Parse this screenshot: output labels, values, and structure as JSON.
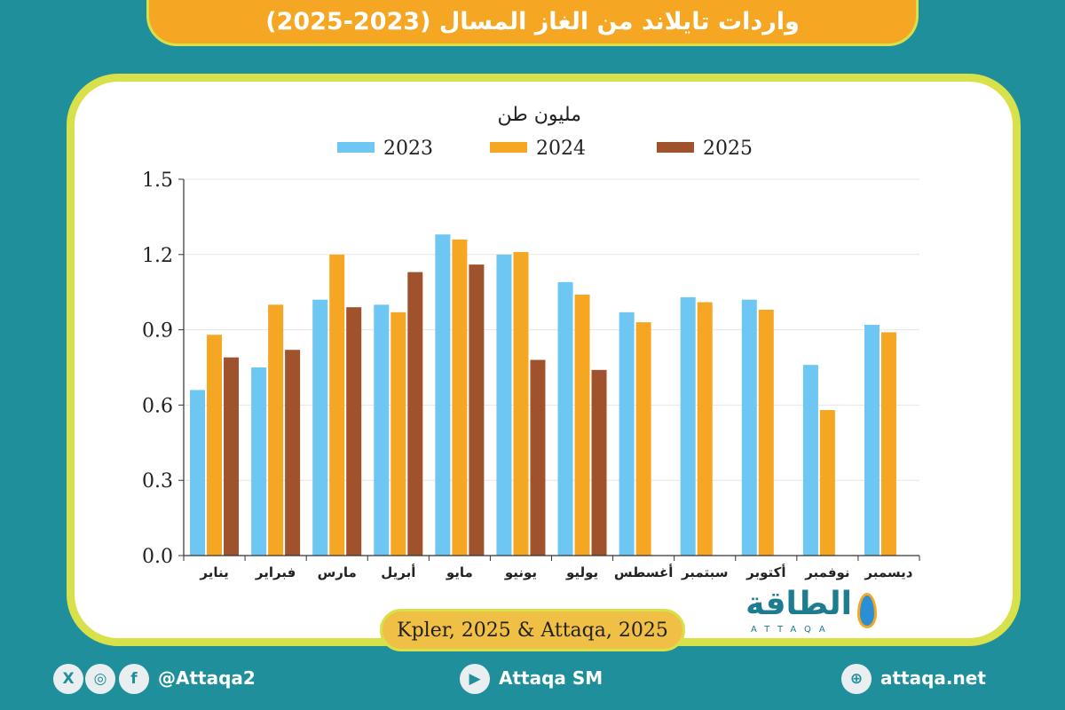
{
  "header": {
    "title": "واردات تايلاند من الغاز المسال (2023-2025)"
  },
  "chart_data": {
    "type": "bar",
    "unit_label": "مليون طن",
    "categories": [
      "يناير",
      "فبراير",
      "مارس",
      "أبريل",
      "مايو",
      "يونيو",
      "يوليو",
      "أغسطس",
      "سبتمبر",
      "أكتوبر",
      "نوفمبر",
      "ديسمبر"
    ],
    "series": [
      {
        "name": "2023",
        "values": [
          0.66,
          0.75,
          1.02,
          1.0,
          1.28,
          1.2,
          1.09,
          0.97,
          1.03,
          1.02,
          0.76,
          0.92
        ]
      },
      {
        "name": "2024",
        "values": [
          0.88,
          1.0,
          1.2,
          0.97,
          1.26,
          1.21,
          1.04,
          0.93,
          1.01,
          0.98,
          0.58,
          0.89
        ]
      },
      {
        "name": "2025",
        "values": [
          0.79,
          0.82,
          0.99,
          1.13,
          1.16,
          0.78,
          0.74,
          null,
          null,
          null,
          null,
          null
        ]
      }
    ],
    "yticks": [
      "0.0",
      "0.3",
      "0.6",
      "0.9",
      "1.2",
      "1.5"
    ],
    "ylim": [
      0,
      1.5
    ],
    "legend_position": "top",
    "colors": {
      "2023": "#6ec6f2",
      "2024": "#f5a623",
      "2025": "#a0522d"
    }
  },
  "source": "Kpler, 2025 & Attaqa, 2025",
  "brand": {
    "name_ar": "الطاقة",
    "name_en": "ATTAQA"
  },
  "footer": {
    "social_handle": "@Attaqa2",
    "youtube": "Attaqa SM",
    "website": "attaqa.net",
    "icons": [
      "x-icon",
      "instagram-icon",
      "facebook-icon",
      "youtube-icon",
      "globe-icon"
    ]
  }
}
